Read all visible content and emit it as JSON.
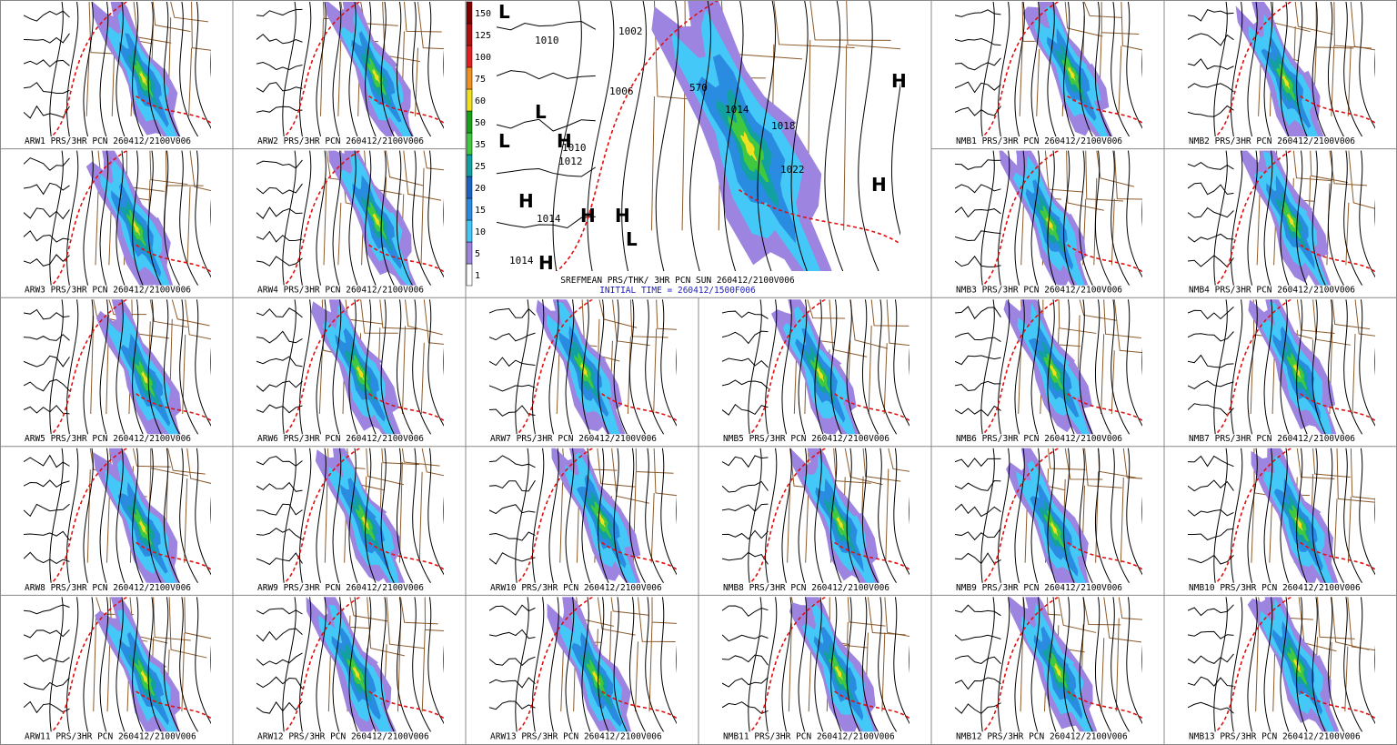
{
  "colorbar": {
    "levels": [
      {
        "value": 1,
        "color": "#ffffff"
      },
      {
        "value": 5,
        "color": "#9d84e0"
      },
      {
        "value": 10,
        "color": "#44c8f8"
      },
      {
        "value": 15,
        "color": "#2a8ce0"
      },
      {
        "value": 20,
        "color": "#1a64c0"
      },
      {
        "value": 25,
        "color": "#12a0a0"
      },
      {
        "value": 35,
        "color": "#40c840"
      },
      {
        "value": 50,
        "color": "#18a018"
      },
      {
        "value": 60,
        "color": "#f0e020"
      },
      {
        "value": 75,
        "color": "#f09020"
      },
      {
        "value": 100,
        "color": "#e02020"
      },
      {
        "value": 125,
        "color": "#b01010"
      },
      {
        "value": 150,
        "color": "#800000"
      }
    ]
  },
  "center": {
    "caption": "SREFMEAN PRS/THK/ 3HR PCN SUN 260412/2100V006",
    "initial_time": "INITIAL TIME = 260412/1500F006",
    "contour_labels": [
      "1010",
      "1002",
      "1006",
      "570",
      "1014",
      "1018",
      "1010",
      "1012",
      "1014",
      "1022",
      "1014"
    ],
    "pressure_centers": [
      "L",
      "L",
      "L",
      "L",
      "H",
      "H",
      "H",
      "H",
      "H",
      "H",
      "H"
    ]
  },
  "panels": [
    {
      "caption": "ARW1 PRS/3HR PCN 260412/2100V006"
    },
    {
      "caption": "ARW2 PRS/3HR PCN 260412/2100V006"
    },
    {
      "caption": "NMB1 PRS/3HR PCN 260412/2100V006"
    },
    {
      "caption": "NMB2 PRS/3HR PCN 260412/2100V006"
    },
    {
      "caption": "ARW3 PRS/3HR PCN 260412/2100V006"
    },
    {
      "caption": "ARW4 PRS/3HR PCN 260412/2100V006"
    },
    {
      "caption": "NMB3 PRS/3HR PCN 260412/2100V006"
    },
    {
      "caption": "NMB4 PRS/3HR PCN 260412/2100V006"
    },
    {
      "caption": "ARW5 PRS/3HR PCN 260412/2100V006"
    },
    {
      "caption": "ARW6 PRS/3HR PCN 260412/2100V006"
    },
    {
      "caption": "ARW7 PRS/3HR PCN 260412/2100V006"
    },
    {
      "caption": "NMB5 PRS/3HR PCN 260412/2100V006"
    },
    {
      "caption": "NMB6 PRS/3HR PCN 260412/2100V006"
    },
    {
      "caption": "NMB7 PRS/3HR PCN 260412/2100V006"
    },
    {
      "caption": "ARW8 PRS/3HR PCN 260412/2100V006"
    },
    {
      "caption": "ARW9 PRS/3HR PCN 260412/2100V006"
    },
    {
      "caption": "ARW10 PRS/3HR PCN 260412/2100V006"
    },
    {
      "caption": "NMB8 PRS/3HR PCN 260412/2100V006"
    },
    {
      "caption": "NMB9 PRS/3HR PCN 260412/2100V006"
    },
    {
      "caption": "NMB10 PRS/3HR PCN 260412/2100V006"
    },
    {
      "caption": "ARW11 PRS/3HR PCN 260412/2100V006"
    },
    {
      "caption": "ARW12 PRS/3HR PCN 260412/2100V006"
    },
    {
      "caption": "ARW13 PRS/3HR PCN 260412/2100V006"
    },
    {
      "caption": "NMB11 PRS/3HR PCN 260412/2100V006"
    },
    {
      "caption": "NMB12 PRS/3HR PCN 260412/2100V006"
    },
    {
      "caption": "NMB13 PRS/3HR PCN 260412/2100V006"
    }
  ]
}
